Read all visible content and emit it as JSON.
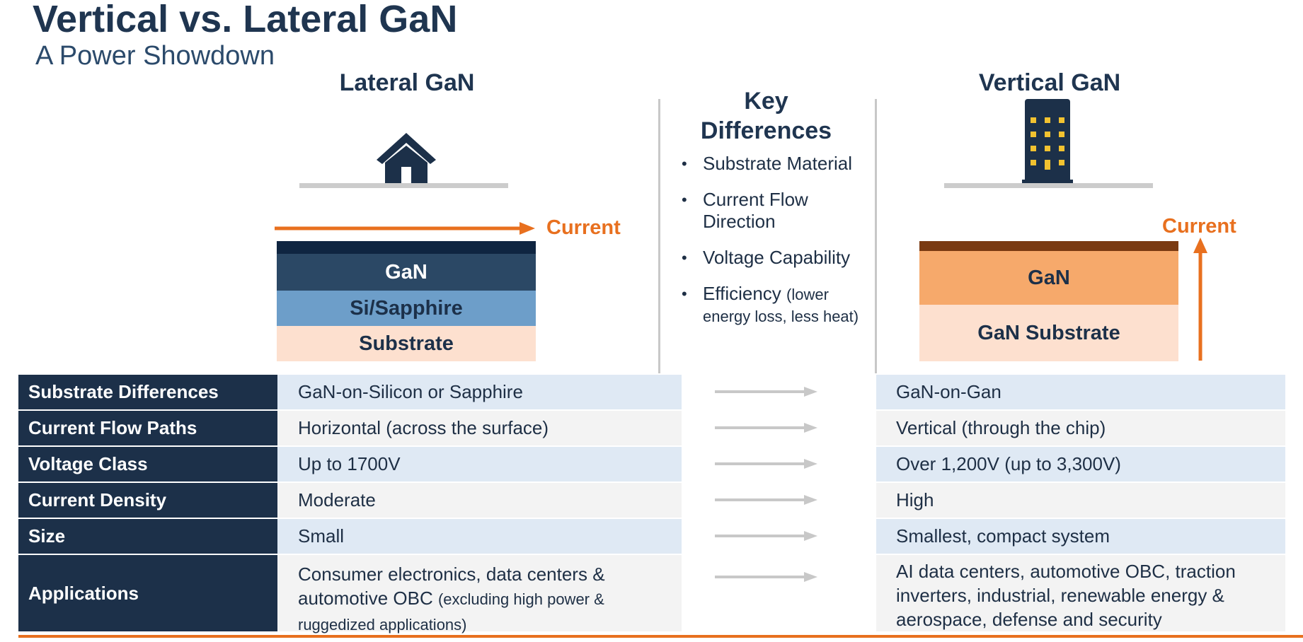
{
  "header": {
    "title": "Vertical vs. Lateral GaN",
    "subtitle": "A Power Showdown"
  },
  "lateral": {
    "heading": "Lateral GaN",
    "icon": "house-icon",
    "current_label": "Current",
    "layers": [
      "GaN",
      "Si/Sapphire",
      "Substrate"
    ]
  },
  "key_differences": {
    "heading_line1": "Key",
    "heading_line2": "Differences",
    "items": [
      "Substrate Material",
      "Current Flow Direction",
      "Voltage Capability",
      "Efficiency"
    ],
    "efficiency_note": "(lower energy loss, less heat)"
  },
  "vertical": {
    "heading": "Vertical GaN",
    "icon": "building-icon",
    "current_label": "Current",
    "layers": [
      "GaN",
      "GaN Substrate"
    ]
  },
  "table": {
    "rows": [
      {
        "label": "Substrate Differences",
        "lateral": "GaN-on-Silicon or Sapphire",
        "vertical": "GaN-on-Gan"
      },
      {
        "label": "Current Flow Paths",
        "lateral": "Horizontal (across the surface)",
        "vertical": "Vertical (through the chip)"
      },
      {
        "label": "Voltage Class",
        "lateral": "Up to 1700V",
        "vertical": "Over 1,200V (up to 3,300V)"
      },
      {
        "label": "Current Density",
        "lateral": "Moderate",
        "vertical": "High"
      },
      {
        "label": "Size",
        "lateral": "Small",
        "vertical": "Smallest, compact system"
      },
      {
        "label": "Applications",
        "lateral": "Consumer electronics, data centers & automotive OBC",
        "lateral_note": "(excluding high power & ruggedized applications)",
        "vertical": "AI data centers, automotive OBC, traction inverters, industrial, renewable energy & aerospace, defense and security"
      }
    ]
  },
  "colors": {
    "navy": "#1c3049",
    "orange": "#e8701f",
    "row_blue": "#dfe9f4",
    "row_grey": "#f3f3f3"
  }
}
